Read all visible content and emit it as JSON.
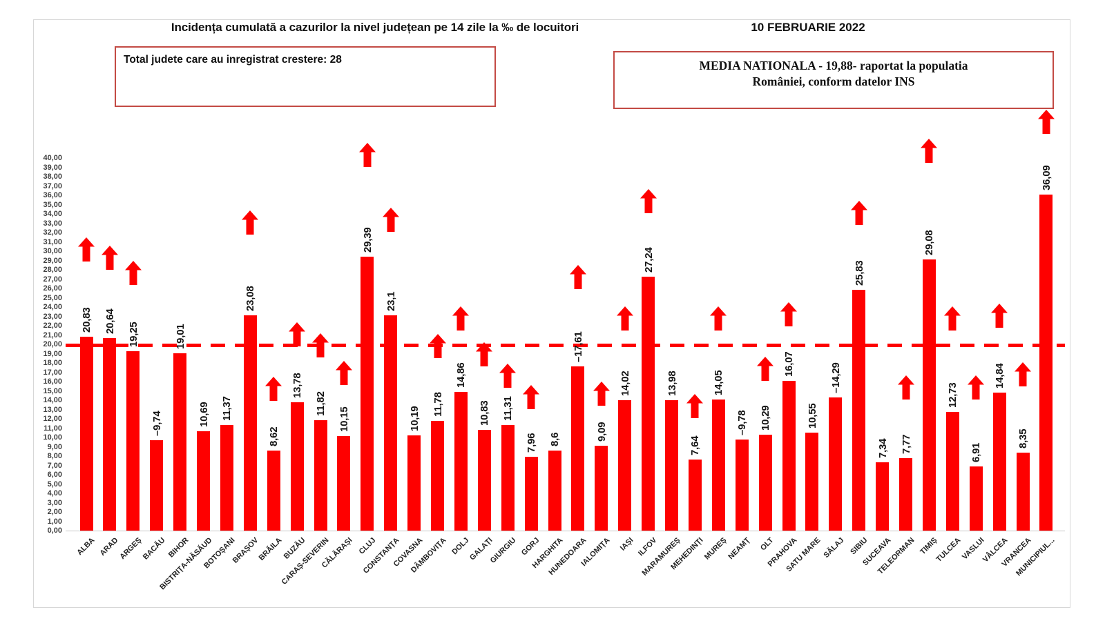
{
  "header": {
    "title": "Incidența cumulată a cazurilor la nivel județean pe 14 zile la ‰ de locuitori",
    "date": "10 FEBRUARIE 2022",
    "growth_box_text": "Total judete care au inregistrat crestere: 28",
    "average_box_line1": "MEDIA NATIONALA - 19,88-  raportat la populatia",
    "average_box_line2": "României, conform datelor INS"
  },
  "colors": {
    "bar": "#fe0000",
    "arrow": "#fe0000",
    "dashed_line": "#fe0000",
    "box_border": "#c34a44",
    "axis_text": "#3f3f3f",
    "label_text": "#141414"
  },
  "chart_data": {
    "type": "bar",
    "title": "Incidența cumulată a cazurilor la nivel județean pe 14 zile la ‰ de locuitori",
    "ylabel": "",
    "xlabel": "",
    "ylim": [
      0,
      40
    ],
    "ytick_step": 1,
    "decimal_separator": ",",
    "grid": false,
    "legend": false,
    "national_average": 19.88,
    "national_average_label": "19,88",
    "counties": [
      {
        "name": "ALBA",
        "value": 20.83,
        "label": "20,83",
        "arrow": true,
        "arrow_tip": 31.5
      },
      {
        "name": "ARAD",
        "value": 20.64,
        "label": "20,64",
        "arrow": true,
        "arrow_tip": 30.6
      },
      {
        "name": "ARGEȘ",
        "value": 19.25,
        "label": "19,25",
        "arrow": true,
        "arrow_tip": 29.0
      },
      {
        "name": "BACĂU",
        "value": 9.74,
        "label": "–9,74",
        "arrow": false,
        "arrow_tip": null
      },
      {
        "name": "BIHOR",
        "value": 19.01,
        "label": "19,01",
        "arrow": false,
        "arrow_tip": null
      },
      {
        "name": "BISTRIȚA-NĂSĂUD",
        "value": 10.69,
        "label": "10,69",
        "arrow": false,
        "arrow_tip": null
      },
      {
        "name": "BOTOȘANI",
        "value": 11.37,
        "label": "11,37",
        "arrow": false,
        "arrow_tip": null
      },
      {
        "name": "BRAȘOV",
        "value": 23.08,
        "label": "23,08",
        "arrow": true,
        "arrow_tip": 34.4
      },
      {
        "name": "BRĂILA",
        "value": 8.62,
        "label": "8,62",
        "arrow": true,
        "arrow_tip": 16.5
      },
      {
        "name": "BUZĂU",
        "value": 13.78,
        "label": "13,78",
        "arrow": true,
        "arrow_tip": 22.4
      },
      {
        "name": "CARAȘ-SEVERIN",
        "value": 11.82,
        "label": "11,82",
        "arrow": true,
        "arrow_tip": 21.2
      },
      {
        "name": "CĂLĂRAȘI",
        "value": 10.15,
        "label": "10,15",
        "arrow": true,
        "arrow_tip": 18.2
      },
      {
        "name": "CLUJ",
        "value": 29.39,
        "label": "29,39",
        "arrow": true,
        "arrow_tip": 41.6
      },
      {
        "name": "CONSTANȚA",
        "value": 23.1,
        "label": "23,1",
        "arrow": true,
        "arrow_tip": 34.7
      },
      {
        "name": "COVASNA",
        "value": 10.19,
        "label": "10,19",
        "arrow": false,
        "arrow_tip": null
      },
      {
        "name": "DÂMBOVIȚA",
        "value": 11.78,
        "label": "11,78",
        "arrow": true,
        "arrow_tip": 21.1
      },
      {
        "name": "DOLJ",
        "value": 14.86,
        "label": "14,86",
        "arrow": true,
        "arrow_tip": 24.1
      },
      {
        "name": "GALAȚI",
        "value": 10.83,
        "label": "10,83",
        "arrow": true,
        "arrow_tip": 20.2
      },
      {
        "name": "GIURGIU",
        "value": 11.31,
        "label": "11,31",
        "arrow": true,
        "arrow_tip": 17.9
      },
      {
        "name": "GORJ",
        "value": 7.96,
        "label": "7,96",
        "arrow": true,
        "arrow_tip": 15.6
      },
      {
        "name": "HARGHITA",
        "value": 8.6,
        "label": "8,6",
        "arrow": false,
        "arrow_tip": null
      },
      {
        "name": "HUNEDOARA",
        "value": 17.61,
        "label": "–17,61",
        "arrow": true,
        "arrow_tip": 28.5
      },
      {
        "name": "IALOMIȚA",
        "value": 9.09,
        "label": "9,09",
        "arrow": true,
        "arrow_tip": 16.0
      },
      {
        "name": "IAȘI",
        "value": 14.02,
        "label": "14,02",
        "arrow": true,
        "arrow_tip": 24.1
      },
      {
        "name": "ILFOV",
        "value": 27.24,
        "label": "27,24",
        "arrow": true,
        "arrow_tip": 36.7
      },
      {
        "name": "MARAMUREȘ",
        "value": 13.98,
        "label": "13,98",
        "arrow": false,
        "arrow_tip": null
      },
      {
        "name": "MEHEDINȚI",
        "value": 7.64,
        "label": "7,64",
        "arrow": true,
        "arrow_tip": 14.7
      },
      {
        "name": "MUREȘ",
        "value": 14.05,
        "label": "14,05",
        "arrow": true,
        "arrow_tip": 24.1
      },
      {
        "name": "NEAMȚ",
        "value": 9.78,
        "label": "–9,78",
        "arrow": false,
        "arrow_tip": null
      },
      {
        "name": "OLT",
        "value": 10.29,
        "label": "10,29",
        "arrow": true,
        "arrow_tip": 18.7
      },
      {
        "name": "PRAHOVA",
        "value": 16.07,
        "label": "16,07",
        "arrow": true,
        "arrow_tip": 24.5
      },
      {
        "name": "SATU MARE",
        "value": 10.55,
        "label": "10,55",
        "arrow": false,
        "arrow_tip": null
      },
      {
        "name": "SĂLAJ",
        "value": 14.29,
        "label": "–14,29",
        "arrow": false,
        "arrow_tip": null
      },
      {
        "name": "SIBIU",
        "value": 25.83,
        "label": "25,83",
        "arrow": true,
        "arrow_tip": 35.4
      },
      {
        "name": "SUCEAVA",
        "value": 7.34,
        "label": "7,34",
        "arrow": false,
        "arrow_tip": null
      },
      {
        "name": "TELEORMAN",
        "value": 7.77,
        "label": "7,77",
        "arrow": true,
        "arrow_tip": 16.7
      },
      {
        "name": "TIMIȘ",
        "value": 29.08,
        "label": "29,08",
        "arrow": true,
        "arrow_tip": 42.1
      },
      {
        "name": "TULCEA",
        "value": 12.73,
        "label": "12,73",
        "arrow": true,
        "arrow_tip": 24.1
      },
      {
        "name": "VASLUI",
        "value": 6.91,
        "label": "6,91",
        "arrow": true,
        "arrow_tip": 16.7
      },
      {
        "name": "VÂLCEA",
        "value": 14.84,
        "label": "14,84",
        "arrow": true,
        "arrow_tip": 24.4
      },
      {
        "name": "VRANCEA",
        "value": 8.35,
        "label": "8,35",
        "arrow": true,
        "arrow_tip": 18.1
      },
      {
        "name": "MUNICIPIUL...",
        "value": 36.09,
        "label": "36,09",
        "arrow": true,
        "arrow_tip": 45.2
      }
    ]
  }
}
